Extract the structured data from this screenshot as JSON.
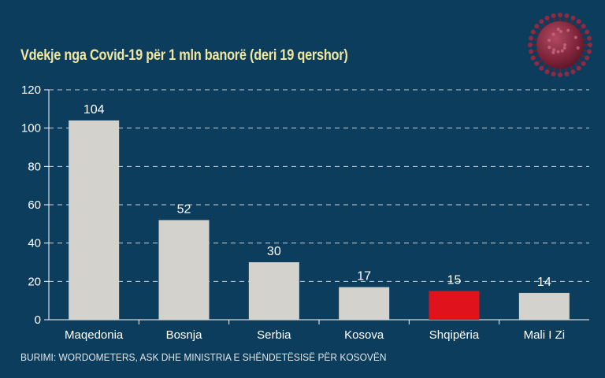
{
  "title": "Vdekje nga Covid-19 për 1 mln banorë (deri 19 qershor)",
  "source": "BURIMI: WORDOMETERS, ASK DHE MINISTRIA E SHËNDETËSISË PËR KOSOVËN",
  "colors": {
    "background": "#0d3d5c",
    "bar": "#d4d2cd",
    "highlight": "#e0131c",
    "title": "#f0e6a0",
    "virus": "#8e2a42"
  },
  "chart_data": {
    "type": "bar",
    "title": "Vdekje nga Covid-19 për 1 mln banorë (deri 19 qershor)",
    "xlabel": "",
    "ylabel": "",
    "categories": [
      "Maqedonia",
      "Bosnja",
      "Serbia",
      "Kosova",
      "Shqipëria",
      "Mali I Zi"
    ],
    "values": [
      104,
      52,
      30,
      17,
      15,
      14
    ],
    "value_labels": [
      "104",
      "52",
      "30",
      "17",
      "15",
      "14"
    ],
    "highlight_category": "Shqipëria",
    "ylim": [
      0,
      120
    ],
    "yticks": [
      0,
      20,
      40,
      60,
      80,
      100,
      120
    ],
    "grid": true,
    "grid_style": "dashed",
    "legend": "none"
  },
  "decoration": {
    "icon": "coronavirus-icon"
  }
}
